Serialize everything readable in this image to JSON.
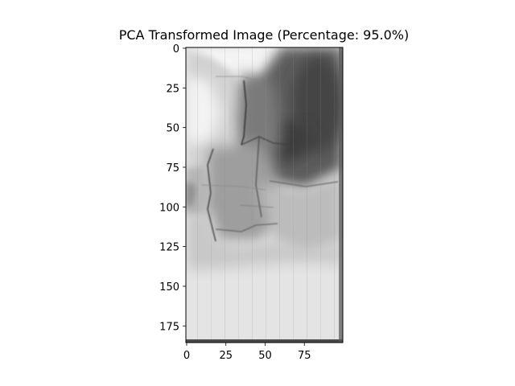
{
  "title": "PCA Transformed Image (Percentage: 95.0%)",
  "image_description_icon": "grayscale-pca-reconstructed-image",
  "axes": {
    "x": {
      "ticks": [
        0,
        25,
        50,
        75
      ],
      "labels": [
        "0",
        "25",
        "50",
        "75"
      ],
      "range": [
        -0.5,
        99.5
      ]
    },
    "y": {
      "ticks": [
        0,
        25,
        50,
        75,
        100,
        125,
        150,
        175
      ],
      "labels": [
        "0",
        "25",
        "50",
        "75",
        "100",
        "125",
        "150",
        "175"
      ],
      "range": [
        -0.5,
        185.5
      ],
      "inverted": true
    }
  },
  "colormap": "gray"
}
